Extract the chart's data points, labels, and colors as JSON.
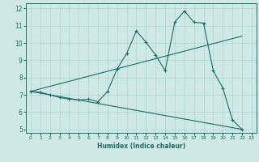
{
  "xlabel": "Humidex (Indice chaleur)",
  "xlim": [
    -0.5,
    23.5
  ],
  "ylim": [
    4.8,
    12.3
  ],
  "xticks": [
    0,
    1,
    2,
    3,
    4,
    5,
    6,
    7,
    8,
    9,
    10,
    11,
    12,
    13,
    14,
    15,
    16,
    17,
    18,
    19,
    20,
    21,
    22,
    23
  ],
  "yticks": [
    5,
    6,
    7,
    8,
    9,
    10,
    11,
    12
  ],
  "bg_color": "#cde8e5",
  "line_color": "#1e6b66",
  "grid_color": "#add4d0",
  "line1_x": [
    0,
    1,
    2,
    3,
    4,
    5,
    6,
    7,
    8,
    9,
    10,
    11,
    12,
    13,
    14,
    15,
    16,
    17,
    18,
    19,
    20,
    21,
    22
  ],
  "line1_y": [
    7.2,
    7.15,
    7.0,
    6.85,
    6.75,
    6.7,
    6.75,
    6.6,
    7.2,
    8.5,
    9.4,
    10.7,
    10.05,
    9.3,
    8.4,
    11.2,
    11.85,
    11.2,
    11.15,
    8.4,
    7.4,
    5.55,
    5.0
  ],
  "line2_x": [
    0,
    22
  ],
  "line2_y": [
    7.2,
    10.4
  ],
  "line3_x": [
    0,
    22
  ],
  "line3_y": [
    7.2,
    5.0
  ],
  "xlabel_fontsize": 5.5,
  "tick_fontsize_x": 4.5,
  "tick_fontsize_y": 5.5
}
